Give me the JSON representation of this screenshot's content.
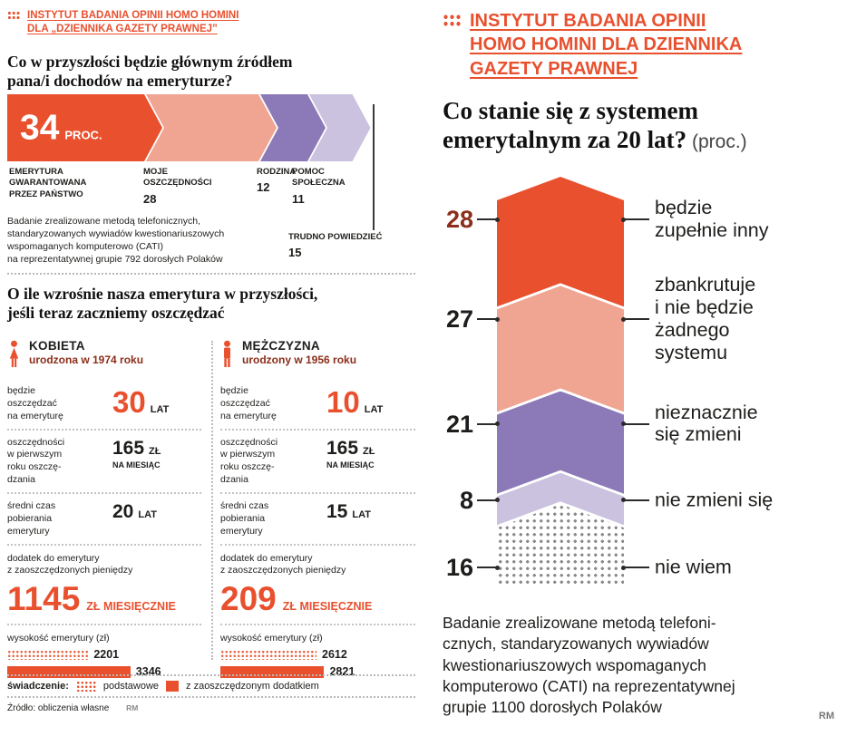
{
  "colors": {
    "red": "#e8502e",
    "salmon": "#f0a592",
    "purple": "#8c7ab8",
    "lavender": "#cac2de",
    "dark": "#1d1d1b",
    "maroon": "#8b2e1a"
  },
  "left": {
    "credit": "INSTYTUT BADANIA OPINII HOMO HOMINI\nDLA „DZIENNIKA GAZETY PRAWNEJ”",
    "q1": {
      "title": "Co w przyszłości będzie głównym źródłem\npana/i dochodów na emeryturze?",
      "big_value": "34",
      "big_unit": "PROC.",
      "below_labels": [
        {
          "text": "EMERYTURA\nGWARANTOWANA\nPRZEZ PAŃSTWO",
          "num": ""
        },
        {
          "text": "MOJE\nOSZCZĘDNOŚCI",
          "num": "28"
        },
        {
          "text": "RODZINA",
          "num": "12"
        },
        {
          "text": "POMOC\nSPOŁECZNA",
          "num": "11"
        }
      ],
      "callout": {
        "text": "TRUDNO POWIEDZIEĆ",
        "num": "15"
      },
      "note": "Badanie zrealizowane metodą telefonicznych,\nstandaryzowanych wywiadów kwestionariuszowych\nwspomaganych komputerowo (CATI)\nna reprezentatywnej grupie 792 dorosłych Polaków"
    },
    "q2": {
      "title": "O ile wzrośnie nasza emerytura w przyszłości,\njeśli teraz zaczniemy oszczędzać",
      "persons": [
        {
          "name": "KOBIETA",
          "born": "urodzona w 1974 roku",
          "rows": [
            {
              "label": "będzie\noszczędzać\nna emeryturę",
              "value": "30",
              "unit": "LAT"
            },
            {
              "label": "oszczędności\nw pierwszym\nroku oszczę-\ndzania",
              "value": "165",
              "unit": "ZŁ",
              "subunit": "NA MIESIĄC"
            },
            {
              "label": "średni czas\npobierania\nemerytury",
              "value": "20",
              "unit": "LAT"
            }
          ],
          "extra_label": "dodatek do emerytury\nz zaoszczędzonych pieniędzy",
          "extra_value": "1145",
          "extra_unit": "ZŁ MIESIĘCZNIE",
          "bars_label": "wysokość emerytury (zł)",
          "bars": [
            {
              "value": 2201,
              "style": "dotted"
            },
            {
              "value": 3346,
              "style": "solid"
            }
          ]
        },
        {
          "name": "MĘŻCZYZNA",
          "born": "urodzony w 1956 roku",
          "rows": [
            {
              "label": "będzie\noszczędzać\nna emeryturę",
              "value": "10",
              "unit": "LAT"
            },
            {
              "label": "oszczędności\nw pierwszym\nroku oszczę-\ndzania",
              "value": "165",
              "unit": "ZŁ",
              "subunit": "NA MIESIĄC"
            },
            {
              "label": "średni czas\npobierania\nemerytury",
              "value": "15",
              "unit": "LAT"
            }
          ],
          "extra_label": "dodatek do emerytury\nz zaoszczędzonych pieniędzy",
          "extra_value": "209",
          "extra_unit": "ZŁ MIESIĘCZNIE",
          "bars_label": "wysokość emerytury (zł)",
          "bars": [
            {
              "value": 2612,
              "style": "dotted"
            },
            {
              "value": 2821,
              "style": "solid"
            }
          ]
        }
      ],
      "legend": {
        "title": "świadczenie:",
        "item1": "podstawowe",
        "item2": "z zaoszczędzonym dodatkiem"
      },
      "source": "Źródło: obliczenia własne",
      "credit": "RM"
    }
  },
  "right": {
    "credit": "INSTYTUT BADANIA OPINII\nHOMO HOMINI DLA DZIENNIKA\nGAZETY PRAWNEJ",
    "title": "Co stanie się z systemem\nemerytalnym za 20 lat?",
    "title_suffix": " (proc.)",
    "note": "Badanie zrealizowane metodą telefoni-\ncznych, standaryzowanych wywiadów\nkwestionariuszowych wspomaganych\nkomputerowo (CATI) na reprezentatywnej\ngrupie 1100 dorosłych Polaków",
    "credit_rm": "RM"
  },
  "chart_data": [
    {
      "type": "bar",
      "orientation": "horizontal-arrow",
      "title": "Co w przyszłości będzie głównym źródłem pana/i dochodów na emeryturze? (proc.)",
      "categories": [
        "Emerytura gwarantowana przez państwo",
        "Moje oszczędności",
        "Rodzina",
        "Pomoc społeczna",
        "Trudno powiedzieć"
      ],
      "values": [
        34,
        28,
        12,
        11,
        15
      ],
      "colors": [
        "#e8502e",
        "#f0a592",
        "#8c7ab8",
        "#cac2de",
        "none"
      ]
    },
    {
      "type": "bar",
      "orientation": "vertical-arrow",
      "title": "Co stanie się z systemem emerytalnym za 20 lat? (proc.)",
      "categories": [
        "będzie\nzupełnie inny",
        "zbankrutuje\ni nie będzie\nżadnego\nsystemu",
        "nieznacznie\nsię zmieni",
        "nie zmieni się",
        "nie wiem"
      ],
      "values": [
        28,
        27,
        21,
        8,
        16
      ],
      "colors": [
        "#e8502e",
        "#f0a592",
        "#8c7ab8",
        "#cac2de",
        "dotted"
      ],
      "num_colors": [
        "#8b2e1a",
        "#1d1d1b",
        "#1d1d1b",
        "#1d1d1b",
        "#1d1d1b"
      ]
    },
    {
      "type": "bar",
      "title": "wysokość emerytury (zł)",
      "categories": [
        "Kobieta urodzona w 1974 roku",
        "Mężczyzna urodzony w 1956 roku"
      ],
      "series": [
        {
          "name": "świadczenie podstawowe",
          "values": [
            2201,
            2612
          ]
        },
        {
          "name": "świadczenie z zaoszczędzonym dodatkiem",
          "values": [
            3346,
            2821
          ]
        }
      ]
    }
  ]
}
